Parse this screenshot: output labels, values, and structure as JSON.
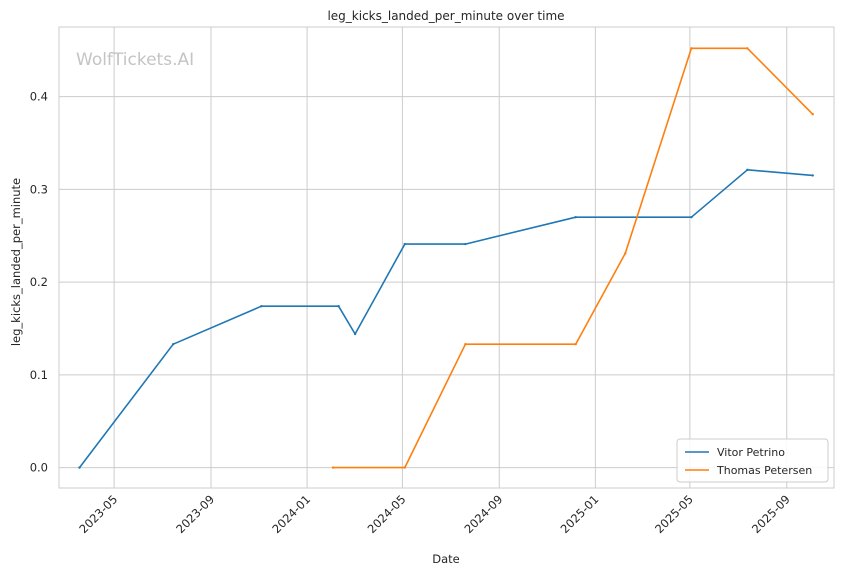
{
  "chart_data": {
    "type": "line",
    "title": "leg_kicks_landed_per_minute over time",
    "xlabel": "Date",
    "ylabel": "leg_kicks_landed_per_minute",
    "watermark": "WolfTickets.AI",
    "x_ticks": [
      "2023-05",
      "2023-09",
      "2024-01",
      "2024-05",
      "2024-09",
      "2025-01",
      "2025-05",
      "2025-09"
    ],
    "y_ticks": [
      "0.0",
      "0.1",
      "0.2",
      "0.3",
      "0.4"
    ],
    "xlim": [
      "2023-02-20",
      "2025-10-31"
    ],
    "ylim": [
      -0.022,
      0.475
    ],
    "grid": true,
    "legend_position": "lower-right",
    "series": [
      {
        "name": "Vitor Petrino",
        "color": "#1f77b4",
        "points": [
          {
            "x": "2023-03-18",
            "y": 0.0
          },
          {
            "x": "2023-07-15",
            "y": 0.133
          },
          {
            "x": "2023-11-04",
            "y": 0.174
          },
          {
            "x": "2024-02-10",
            "y": 0.174
          },
          {
            "x": "2024-03-02",
            "y": 0.144
          },
          {
            "x": "2024-05-04",
            "y": 0.241
          },
          {
            "x": "2024-07-20",
            "y": 0.241
          },
          {
            "x": "2024-12-07",
            "y": 0.27
          },
          {
            "x": "2025-05-03",
            "y": 0.27
          },
          {
            "x": "2025-07-13",
            "y": 0.321
          },
          {
            "x": "2025-10-04",
            "y": 0.315
          }
        ]
      },
      {
        "name": "Thomas Petersen",
        "color": "#ff7f0e",
        "points": [
          {
            "x": "2024-02-03",
            "y": 0.0
          },
          {
            "x": "2024-05-04",
            "y": 0.0
          },
          {
            "x": "2024-07-20",
            "y": 0.133
          },
          {
            "x": "2024-12-07",
            "y": 0.133
          },
          {
            "x": "2025-02-08",
            "y": 0.231
          },
          {
            "x": "2025-05-03",
            "y": 0.452
          },
          {
            "x": "2025-07-13",
            "y": 0.452
          },
          {
            "x": "2025-10-04",
            "y": 0.381
          }
        ]
      }
    ]
  }
}
